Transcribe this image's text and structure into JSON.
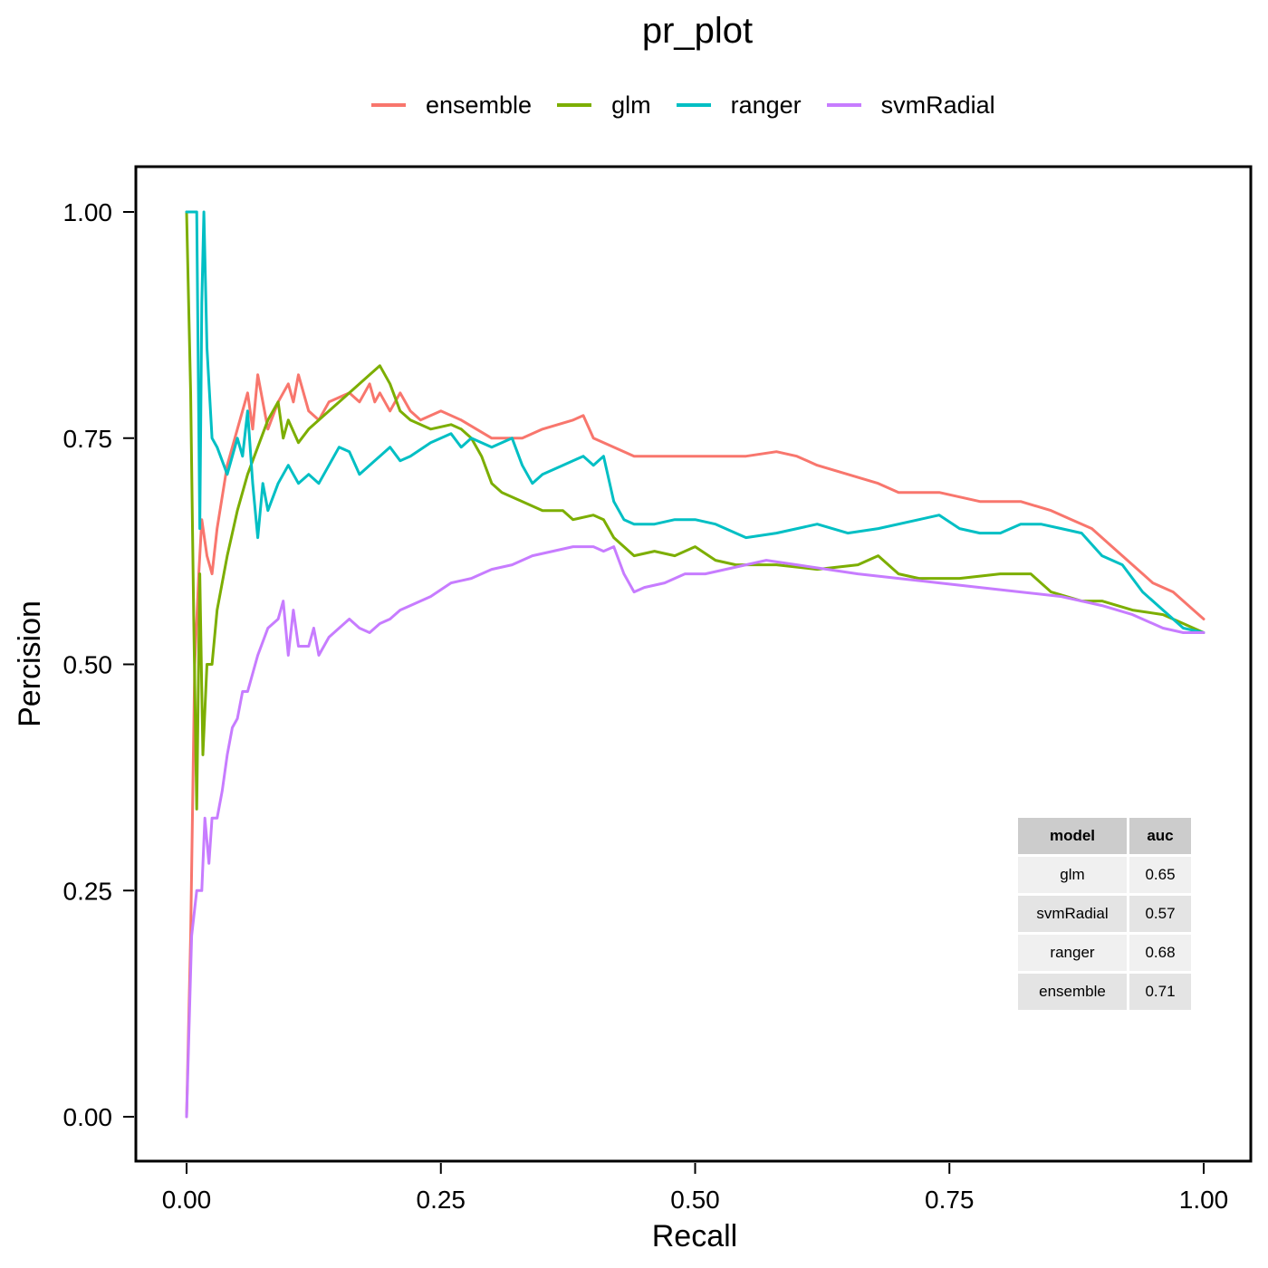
{
  "chart_data": {
    "type": "line",
    "title": "pr_plot",
    "xlabel": "Recall",
    "ylabel": "Percision",
    "xlim": [
      0,
      1
    ],
    "ylim": [
      0,
      1
    ],
    "xticks": [
      "0.00",
      "0.25",
      "0.50",
      "0.75",
      "1.00"
    ],
    "yticks": [
      "0.00",
      "0.25",
      "0.50",
      "0.75",
      "1.00"
    ],
    "grid": false,
    "legend_position": "top",
    "series": [
      {
        "name": "ensemble",
        "color": "#F8766D",
        "points": [
          [
            0.0,
            0.0
          ],
          [
            0.004,
            0.2
          ],
          [
            0.008,
            0.5
          ],
          [
            0.012,
            0.6
          ],
          [
            0.015,
            0.66
          ],
          [
            0.02,
            0.62
          ],
          [
            0.025,
            0.6
          ],
          [
            0.03,
            0.65
          ],
          [
            0.04,
            0.72
          ],
          [
            0.05,
            0.76
          ],
          [
            0.06,
            0.8
          ],
          [
            0.065,
            0.76
          ],
          [
            0.07,
            0.82
          ],
          [
            0.075,
            0.79
          ],
          [
            0.08,
            0.76
          ],
          [
            0.09,
            0.79
          ],
          [
            0.1,
            0.81
          ],
          [
            0.105,
            0.79
          ],
          [
            0.11,
            0.82
          ],
          [
            0.12,
            0.78
          ],
          [
            0.13,
            0.77
          ],
          [
            0.14,
            0.79
          ],
          [
            0.16,
            0.8
          ],
          [
            0.17,
            0.79
          ],
          [
            0.18,
            0.81
          ],
          [
            0.185,
            0.79
          ],
          [
            0.19,
            0.8
          ],
          [
            0.2,
            0.78
          ],
          [
            0.21,
            0.8
          ],
          [
            0.22,
            0.78
          ],
          [
            0.23,
            0.77
          ],
          [
            0.25,
            0.78
          ],
          [
            0.27,
            0.77
          ],
          [
            0.3,
            0.75
          ],
          [
            0.33,
            0.75
          ],
          [
            0.35,
            0.76
          ],
          [
            0.38,
            0.77
          ],
          [
            0.39,
            0.775
          ],
          [
            0.4,
            0.75
          ],
          [
            0.42,
            0.74
          ],
          [
            0.44,
            0.73
          ],
          [
            0.46,
            0.73
          ],
          [
            0.5,
            0.73
          ],
          [
            0.55,
            0.73
          ],
          [
            0.58,
            0.735
          ],
          [
            0.6,
            0.73
          ],
          [
            0.62,
            0.72
          ],
          [
            0.65,
            0.71
          ],
          [
            0.68,
            0.7
          ],
          [
            0.7,
            0.69
          ],
          [
            0.74,
            0.69
          ],
          [
            0.78,
            0.68
          ],
          [
            0.82,
            0.68
          ],
          [
            0.85,
            0.67
          ],
          [
            0.87,
            0.66
          ],
          [
            0.89,
            0.65
          ],
          [
            0.91,
            0.63
          ],
          [
            0.93,
            0.61
          ],
          [
            0.95,
            0.59
          ],
          [
            0.97,
            0.58
          ],
          [
            0.99,
            0.56
          ],
          [
            1.0,
            0.55
          ]
        ]
      },
      {
        "name": "glm",
        "color": "#7CAE00",
        "points": [
          [
            0.0,
            1.0
          ],
          [
            0.004,
            0.8
          ],
          [
            0.007,
            0.55
          ],
          [
            0.01,
            0.34
          ],
          [
            0.013,
            0.6
          ],
          [
            0.016,
            0.4
          ],
          [
            0.02,
            0.5
          ],
          [
            0.025,
            0.5
          ],
          [
            0.03,
            0.56
          ],
          [
            0.04,
            0.62
          ],
          [
            0.05,
            0.67
          ],
          [
            0.06,
            0.71
          ],
          [
            0.07,
            0.74
          ],
          [
            0.08,
            0.77
          ],
          [
            0.09,
            0.79
          ],
          [
            0.095,
            0.75
          ],
          [
            0.1,
            0.77
          ],
          [
            0.11,
            0.745
          ],
          [
            0.12,
            0.76
          ],
          [
            0.14,
            0.78
          ],
          [
            0.16,
            0.8
          ],
          [
            0.18,
            0.82
          ],
          [
            0.19,
            0.83
          ],
          [
            0.2,
            0.81
          ],
          [
            0.21,
            0.78
          ],
          [
            0.22,
            0.77
          ],
          [
            0.24,
            0.76
          ],
          [
            0.26,
            0.765
          ],
          [
            0.27,
            0.76
          ],
          [
            0.28,
            0.75
          ],
          [
            0.29,
            0.73
          ],
          [
            0.3,
            0.7
          ],
          [
            0.31,
            0.69
          ],
          [
            0.33,
            0.68
          ],
          [
            0.35,
            0.67
          ],
          [
            0.37,
            0.67
          ],
          [
            0.38,
            0.66
          ],
          [
            0.4,
            0.665
          ],
          [
            0.41,
            0.66
          ],
          [
            0.42,
            0.64
          ],
          [
            0.43,
            0.63
          ],
          [
            0.44,
            0.62
          ],
          [
            0.46,
            0.625
          ],
          [
            0.48,
            0.62
          ],
          [
            0.5,
            0.63
          ],
          [
            0.52,
            0.615
          ],
          [
            0.54,
            0.61
          ],
          [
            0.58,
            0.61
          ],
          [
            0.62,
            0.605
          ],
          [
            0.66,
            0.61
          ],
          [
            0.68,
            0.62
          ],
          [
            0.7,
            0.6
          ],
          [
            0.72,
            0.595
          ],
          [
            0.76,
            0.595
          ],
          [
            0.8,
            0.6
          ],
          [
            0.83,
            0.6
          ],
          [
            0.85,
            0.58
          ],
          [
            0.88,
            0.57
          ],
          [
            0.9,
            0.57
          ],
          [
            0.93,
            0.56
          ],
          [
            0.96,
            0.555
          ],
          [
            0.98,
            0.545
          ],
          [
            1.0,
            0.535
          ]
        ]
      },
      {
        "name": "ranger",
        "color": "#00BFC4",
        "points": [
          [
            0.0,
            1.0
          ],
          [
            0.005,
            1.0
          ],
          [
            0.01,
            1.0
          ],
          [
            0.013,
            0.65
          ],
          [
            0.015,
            0.9
          ],
          [
            0.017,
            1.0
          ],
          [
            0.02,
            0.85
          ],
          [
            0.025,
            0.75
          ],
          [
            0.03,
            0.74
          ],
          [
            0.04,
            0.71
          ],
          [
            0.05,
            0.75
          ],
          [
            0.055,
            0.73
          ],
          [
            0.06,
            0.78
          ],
          [
            0.065,
            0.7
          ],
          [
            0.07,
            0.64
          ],
          [
            0.075,
            0.7
          ],
          [
            0.08,
            0.67
          ],
          [
            0.09,
            0.7
          ],
          [
            0.1,
            0.72
          ],
          [
            0.11,
            0.7
          ],
          [
            0.12,
            0.71
          ],
          [
            0.13,
            0.7
          ],
          [
            0.14,
            0.72
          ],
          [
            0.15,
            0.74
          ],
          [
            0.16,
            0.735
          ],
          [
            0.17,
            0.71
          ],
          [
            0.18,
            0.72
          ],
          [
            0.19,
            0.73
          ],
          [
            0.2,
            0.74
          ],
          [
            0.21,
            0.725
          ],
          [
            0.22,
            0.73
          ],
          [
            0.24,
            0.745
          ],
          [
            0.26,
            0.755
          ],
          [
            0.27,
            0.74
          ],
          [
            0.28,
            0.75
          ],
          [
            0.3,
            0.74
          ],
          [
            0.32,
            0.75
          ],
          [
            0.33,
            0.72
          ],
          [
            0.34,
            0.7
          ],
          [
            0.35,
            0.71
          ],
          [
            0.37,
            0.72
          ],
          [
            0.39,
            0.73
          ],
          [
            0.4,
            0.72
          ],
          [
            0.41,
            0.73
          ],
          [
            0.42,
            0.68
          ],
          [
            0.43,
            0.66
          ],
          [
            0.44,
            0.655
          ],
          [
            0.46,
            0.655
          ],
          [
            0.48,
            0.66
          ],
          [
            0.5,
            0.66
          ],
          [
            0.52,
            0.655
          ],
          [
            0.55,
            0.64
          ],
          [
            0.58,
            0.645
          ],
          [
            0.62,
            0.655
          ],
          [
            0.65,
            0.645
          ],
          [
            0.68,
            0.65
          ],
          [
            0.72,
            0.66
          ],
          [
            0.74,
            0.665
          ],
          [
            0.76,
            0.65
          ],
          [
            0.78,
            0.645
          ],
          [
            0.8,
            0.645
          ],
          [
            0.82,
            0.655
          ],
          [
            0.84,
            0.655
          ],
          [
            0.86,
            0.65
          ],
          [
            0.88,
            0.645
          ],
          [
            0.9,
            0.62
          ],
          [
            0.92,
            0.61
          ],
          [
            0.94,
            0.58
          ],
          [
            0.96,
            0.56
          ],
          [
            0.98,
            0.54
          ],
          [
            1.0,
            0.535
          ]
        ]
      },
      {
        "name": "svmRadial",
        "color": "#C77CFF",
        "points": [
          [
            0.0,
            0.0
          ],
          [
            0.005,
            0.2
          ],
          [
            0.01,
            0.25
          ],
          [
            0.015,
            0.25
          ],
          [
            0.018,
            0.33
          ],
          [
            0.022,
            0.28
          ],
          [
            0.025,
            0.33
          ],
          [
            0.03,
            0.33
          ],
          [
            0.035,
            0.36
          ],
          [
            0.04,
            0.4
          ],
          [
            0.045,
            0.43
          ],
          [
            0.05,
            0.44
          ],
          [
            0.055,
            0.47
          ],
          [
            0.06,
            0.47
          ],
          [
            0.065,
            0.49
          ],
          [
            0.07,
            0.51
          ],
          [
            0.08,
            0.54
          ],
          [
            0.09,
            0.55
          ],
          [
            0.095,
            0.57
          ],
          [
            0.1,
            0.51
          ],
          [
            0.105,
            0.56
          ],
          [
            0.11,
            0.52
          ],
          [
            0.12,
            0.52
          ],
          [
            0.125,
            0.54
          ],
          [
            0.13,
            0.51
          ],
          [
            0.14,
            0.53
          ],
          [
            0.15,
            0.54
          ],
          [
            0.16,
            0.55
          ],
          [
            0.17,
            0.54
          ],
          [
            0.18,
            0.535
          ],
          [
            0.19,
            0.545
          ],
          [
            0.2,
            0.55
          ],
          [
            0.21,
            0.56
          ],
          [
            0.22,
            0.565
          ],
          [
            0.24,
            0.575
          ],
          [
            0.26,
            0.59
          ],
          [
            0.28,
            0.595
          ],
          [
            0.3,
            0.605
          ],
          [
            0.32,
            0.61
          ],
          [
            0.34,
            0.62
          ],
          [
            0.36,
            0.625
          ],
          [
            0.38,
            0.63
          ],
          [
            0.4,
            0.63
          ],
          [
            0.41,
            0.625
          ],
          [
            0.42,
            0.63
          ],
          [
            0.43,
            0.6
          ],
          [
            0.44,
            0.58
          ],
          [
            0.45,
            0.585
          ],
          [
            0.47,
            0.59
          ],
          [
            0.49,
            0.6
          ],
          [
            0.51,
            0.6
          ],
          [
            0.53,
            0.605
          ],
          [
            0.55,
            0.61
          ],
          [
            0.57,
            0.615
          ],
          [
            0.6,
            0.61
          ],
          [
            0.63,
            0.605
          ],
          [
            0.66,
            0.6
          ],
          [
            0.7,
            0.595
          ],
          [
            0.74,
            0.59
          ],
          [
            0.78,
            0.585
          ],
          [
            0.82,
            0.58
          ],
          [
            0.86,
            0.575
          ],
          [
            0.9,
            0.565
          ],
          [
            0.93,
            0.555
          ],
          [
            0.96,
            0.54
          ],
          [
            0.98,
            0.535
          ],
          [
            1.0,
            0.535
          ]
        ]
      }
    ]
  },
  "auc_table": {
    "headers": [
      "model",
      "auc"
    ],
    "rows": [
      [
        "glm",
        "0.65"
      ],
      [
        "svmRadial",
        "0.57"
      ],
      [
        "ranger",
        "0.68"
      ],
      [
        "ensemble",
        "0.71"
      ]
    ]
  }
}
